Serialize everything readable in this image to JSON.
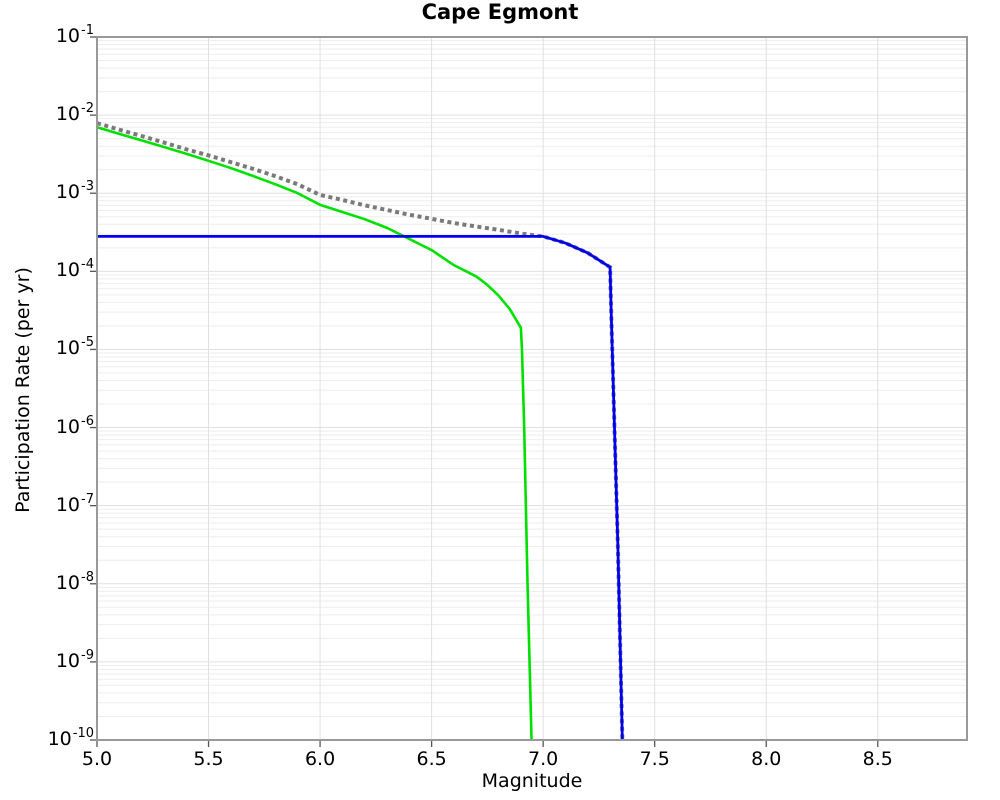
{
  "chart_data": {
    "type": "line",
    "title": "Cape Egmont",
    "xlabel": "Magnitude",
    "ylabel": "Participation Rate (per yr)",
    "xlim": [
      5.0,
      8.9
    ],
    "ylim": [
      1e-10,
      0.1
    ],
    "y_scale": "log",
    "grid": true,
    "legend": "none",
    "background_color": "#ffffff",
    "frame_color": "#999999",
    "grid_major_color": "#e0e0e0",
    "grid_minor_color": "#eeeeee",
    "x_ticks": [
      5.0,
      5.5,
      6.0,
      6.5,
      7.0,
      7.5,
      8.0,
      8.5
    ],
    "x_tick_labels": [
      "5.0",
      "5.5",
      "6.0",
      "6.5",
      "7.0",
      "7.5",
      "8.0",
      "8.5"
    ],
    "y_tick_exponents": [
      -1,
      -2,
      -3,
      -4,
      -5,
      -6,
      -7,
      -8,
      -9,
      -10
    ],
    "series": [
      {
        "name": "green-solid-curve",
        "color": "#00e000",
        "style": "solid",
        "width": 2.6,
        "points": [
          [
            5.0,
            0.007
          ],
          [
            5.1,
            0.00575
          ],
          [
            5.2,
            0.00475
          ],
          [
            5.3,
            0.0039
          ],
          [
            5.4,
            0.0032
          ],
          [
            5.5,
            0.0026
          ],
          [
            5.6,
            0.0021
          ],
          [
            5.7,
            0.00166
          ],
          [
            5.8,
            0.0013
          ],
          [
            5.9,
            0.001
          ],
          [
            6.0,
            0.00071
          ],
          [
            6.1,
            0.000575
          ],
          [
            6.2,
            0.000465
          ],
          [
            6.3,
            0.00036
          ],
          [
            6.4,
            0.00026
          ],
          [
            6.5,
            0.000187
          ],
          [
            6.6,
            0.00012
          ],
          [
            6.7,
            8.6e-05
          ],
          [
            6.75,
            6.7e-05
          ],
          [
            6.8,
            4.9e-05
          ],
          [
            6.85,
            3.3e-05
          ],
          [
            6.9,
            1.9e-05
          ],
          [
            6.905,
            1e-05
          ],
          [
            6.915,
            1e-06
          ],
          [
            6.93,
            1e-08
          ],
          [
            6.948,
            1e-10
          ]
        ]
      },
      {
        "name": "gray-dotted-curve",
        "color": "#7a7a7a",
        "style": "dotted",
        "width": 4,
        "points": [
          [
            5.0,
            0.0079
          ],
          [
            5.1,
            0.0065
          ],
          [
            5.2,
            0.0054
          ],
          [
            5.3,
            0.00445
          ],
          [
            5.4,
            0.00365
          ],
          [
            5.5,
            0.00305
          ],
          [
            5.6,
            0.0025
          ],
          [
            5.7,
            0.00205
          ],
          [
            5.8,
            0.00165
          ],
          [
            5.9,
            0.0013
          ],
          [
            6.0,
            0.00095
          ],
          [
            6.1,
            0.00082
          ],
          [
            6.2,
            0.0007
          ],
          [
            6.3,
            0.00061
          ],
          [
            6.4,
            0.00053
          ],
          [
            6.5,
            0.00047
          ],
          [
            6.6,
            0.000415
          ],
          [
            6.7,
            0.000375
          ],
          [
            6.8,
            0.00034
          ],
          [
            6.9,
            0.000305
          ],
          [
            7.0,
            0.00028
          ],
          [
            7.1,
            0.00023
          ],
          [
            7.2,
            0.000172
          ],
          [
            7.3,
            0.000113
          ],
          [
            7.305,
            3e-05
          ],
          [
            7.315,
            3e-06
          ],
          [
            7.335,
            3e-08
          ],
          [
            7.355,
            1e-10
          ]
        ]
      },
      {
        "name": "blue-solid-curve",
        "color": "#0000ee",
        "style": "solid",
        "width": 2.8,
        "points": [
          [
            5.0,
            0.00028
          ],
          [
            7.0,
            0.00028
          ],
          [
            7.1,
            0.00023
          ],
          [
            7.2,
            0.000172
          ],
          [
            7.3,
            0.000113
          ],
          [
            7.305,
            3e-05
          ],
          [
            7.315,
            3e-06
          ],
          [
            7.335,
            3e-08
          ],
          [
            7.355,
            1e-10
          ]
        ]
      }
    ]
  }
}
